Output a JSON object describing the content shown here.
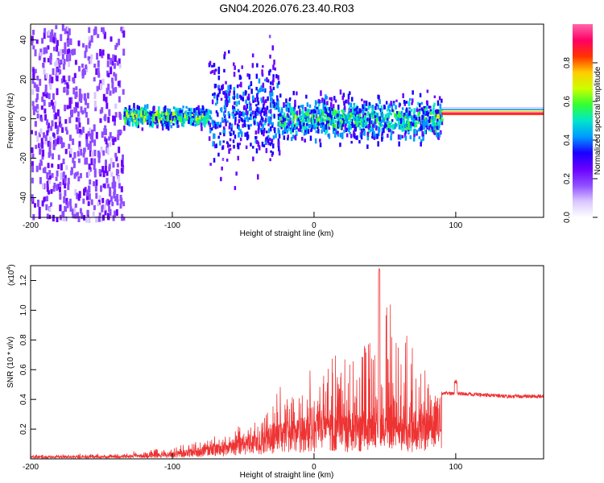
{
  "title": "GN04.2026.076.23.40.R03",
  "colors": {
    "snr_line": "#ee3333",
    "colormap": [
      "#ffffff",
      "#d9c6ff",
      "#8f4dff",
      "#6a00ff",
      "#1a00ff",
      "#0099ff",
      "#00e6cc",
      "#33ff33",
      "#ccff00",
      "#ffcc00",
      "#ff3300",
      "#ff0066",
      "#ff66aa"
    ]
  },
  "chart_data": [
    {
      "type": "heatmap",
      "name": "spectrogram",
      "xlabel": "Height of straight line (km)",
      "ylabel": "Frequency (Hz)",
      "xlim": [
        -200,
        162
      ],
      "ylim": [
        -50,
        48
      ],
      "xticks": [
        -200,
        -100,
        0,
        100
      ],
      "yticks": [
        -40,
        -20,
        0,
        20,
        40
      ],
      "colorbar": {
        "label": "Normalized spectral amplitude",
        "range": [
          0,
          1
        ],
        "ticks": [
          "0.0",
          "0.2",
          "0.4",
          "0.6",
          "0.8"
        ]
      },
      "regions": [
        {
          "x": [
            -200,
            -135
          ],
          "freq_spread": 48,
          "amplitude": 0.15,
          "note": "sparse noise"
        },
        {
          "x": [
            -135,
            -75
          ],
          "freq_center": 2,
          "freq_spread": 6,
          "amplitude": 0.35
        },
        {
          "x": [
            -75,
            -25
          ],
          "freq_center": 5,
          "freq_spread": 30,
          "amplitude": 0.2
        },
        {
          "x": [
            -25,
            90
          ],
          "freq_center": 1,
          "freq_spread": 12,
          "amplitude": 0.3
        },
        {
          "x": [
            90,
            162
          ],
          "freq_center": 2,
          "freq_spread": 2,
          "amplitude": 0.9,
          "note": "narrow stable line"
        }
      ]
    },
    {
      "type": "line",
      "name": "snr",
      "xlabel": "Height of straight line (km)",
      "ylabel": "SNR (10 * v/v)",
      "y_multiplier": "(x10",
      "y_multiplier_exp": "4",
      "xlim": [
        -200,
        162
      ],
      "ylim": [
        0,
        1.3
      ],
      "xticks": [
        -200,
        -100,
        0,
        100
      ],
      "yticks": [
        0.2,
        0.4,
        0.6,
        0.8,
        1.0,
        1.2
      ],
      "envelope": {
        "x": [
          -200,
          -150,
          -120,
          -100,
          -80,
          -60,
          -40,
          -20,
          0,
          20,
          40,
          46,
          60,
          75,
          85,
          90,
          95,
          100,
          120,
          140,
          162
        ],
        "baseline": [
          0.02,
          0.02,
          0.03,
          0.05,
          0.08,
          0.12,
          0.18,
          0.25,
          0.3,
          0.3,
          0.32,
          0.32,
          0.3,
          0.3,
          0.4,
          0.44,
          0.44,
          0.44,
          0.43,
          0.42,
          0.42
        ],
        "peak": [
          0.03,
          0.04,
          0.06,
          0.1,
          0.14,
          0.2,
          0.3,
          0.55,
          0.7,
          0.85,
          1.0,
          1.28,
          0.95,
          0.8,
          0.55,
          0.47,
          0.47,
          0.53,
          0.45,
          0.44,
          0.44
        ]
      },
      "series": [
        {
          "values_envelope": "see envelope"
        }
      ]
    }
  ]
}
